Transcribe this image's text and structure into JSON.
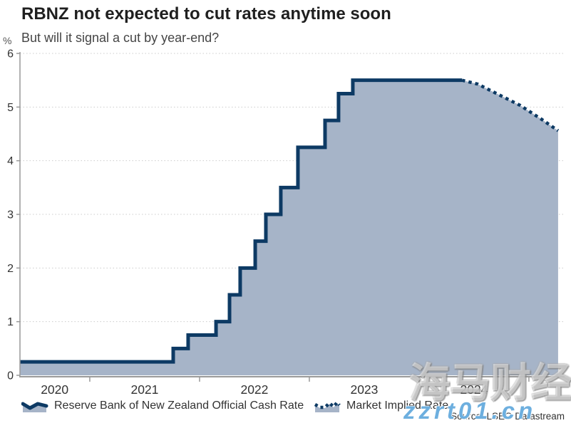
{
  "header": {
    "title": "RBNZ not expected to cut rates anytime soon",
    "subtitle": "But will it signal a cut by year-end?"
  },
  "legend": {
    "ocr_label": "Reserve Bank of New Zealand Official Cash Rate",
    "implied_label": "Market Implied Rate"
  },
  "source_note": "Source: LSEG Datastream",
  "watermarks": {
    "chinese": "海马财经",
    "site": "zzrt01.cn"
  },
  "colors": {
    "line": "#0d3a64",
    "fill": "#a6b4c8",
    "grid": "#cccccc",
    "axis": "#999999",
    "tick_text": "#333333"
  },
  "chart_data": {
    "type": "area",
    "title": "RBNZ not expected to cut rates anytime soon",
    "subtitle": "But will it signal a cut by year-end?",
    "ylabel": "%",
    "ylim": [
      0,
      6
    ],
    "xlim": [
      2020.364,
      2025.29
    ],
    "grid": "dotted horizontal",
    "y_ticks": [
      0,
      1,
      2,
      3,
      4,
      5,
      6
    ],
    "x_boundary_ticks": [
      2021,
      2022,
      2023,
      2024,
      2025
    ],
    "x_labels": [
      {
        "t": 2020.68,
        "label": "2020"
      },
      {
        "t": 2021.5,
        "label": "2021"
      },
      {
        "t": 2022.5,
        "label": "2022"
      },
      {
        "t": 2023.5,
        "label": "2023"
      },
      {
        "t": 2024.5,
        "label": "2024"
      }
    ],
    "series": [
      {
        "name": "Reserve Bank of New Zealand Official Cash Rate",
        "style": "step-solid-area",
        "points": [
          [
            2020.364,
            0.25
          ],
          [
            2021.76,
            0.5
          ],
          [
            2021.896,
            0.75
          ],
          [
            2022.15,
            1.0
          ],
          [
            2022.273,
            1.5
          ],
          [
            2022.37,
            2.0
          ],
          [
            2022.507,
            2.5
          ],
          [
            2022.604,
            3.0
          ],
          [
            2022.74,
            3.5
          ],
          [
            2022.896,
            4.25
          ],
          [
            2023.143,
            4.75
          ],
          [
            2023.266,
            5.25
          ],
          [
            2023.396,
            5.5
          ],
          [
            2024.39,
            5.5
          ]
        ]
      },
      {
        "name": "Market Implied Rate",
        "style": "dotted-line",
        "points": [
          [
            2024.39,
            5.5
          ],
          [
            2024.532,
            5.43
          ],
          [
            2024.727,
            5.23
          ],
          [
            2024.922,
            5.03
          ],
          [
            2025.117,
            4.77
          ],
          [
            2025.266,
            4.56
          ]
        ]
      }
    ],
    "legend_position": "bottom"
  }
}
